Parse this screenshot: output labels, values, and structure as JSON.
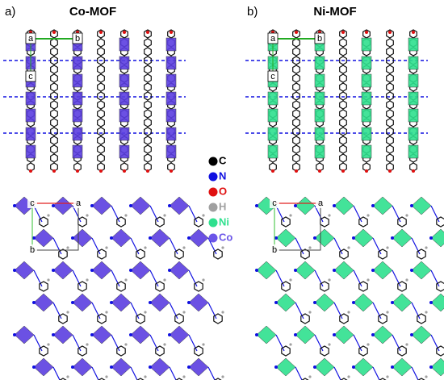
{
  "panels": [
    {
      "label": "a)",
      "title": "Co-MOF",
      "color": "#5b3fe0",
      "top_axes": [
        "a",
        "b",
        "c"
      ],
      "bottom_axes": [
        "c",
        "a",
        "b"
      ]
    },
    {
      "label": "b)",
      "title": "Ni-MOF",
      "color": "#2fe08e",
      "top_axes": [
        "a",
        "b",
        "c"
      ],
      "bottom_axes": [
        "c",
        "a",
        "b"
      ]
    }
  ],
  "legend": [
    {
      "symbol": "C",
      "color": "#000000"
    },
    {
      "symbol": "N",
      "color": "#1010e0"
    },
    {
      "symbol": "O",
      "color": "#e01010"
    },
    {
      "symbol": "H",
      "color": "#a0a0a0"
    },
    {
      "symbol": "Ni",
      "color": "#2fe08e"
    },
    {
      "symbol": "Co",
      "color": "#6a55e8"
    }
  ]
}
